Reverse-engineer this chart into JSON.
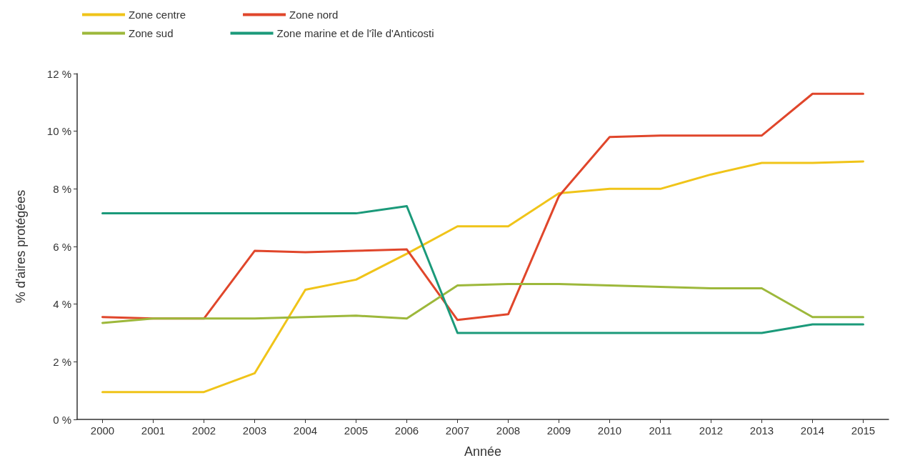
{
  "chart_data": {
    "type": "line",
    "xlabel": "Année",
    "ylabel": "% d'aires protégées",
    "categories": [
      "2000",
      "2001",
      "2002",
      "2003",
      "2004",
      "2005",
      "2006",
      "2007",
      "2008",
      "2009",
      "2010",
      "2011",
      "2012",
      "2013",
      "2014",
      "2015"
    ],
    "series": [
      {
        "name": "Zone centre",
        "color": "#f0c419",
        "values": [
          0.95,
          0.95,
          0.95,
          1.6,
          4.5,
          4.85,
          5.75,
          6.7,
          6.7,
          7.85,
          8.0,
          8.0,
          8.5,
          8.9,
          8.9,
          8.95
        ]
      },
      {
        "name": "Zone nord",
        "color": "#e0462b",
        "values": [
          3.55,
          3.5,
          3.5,
          5.85,
          5.8,
          5.85,
          5.9,
          3.45,
          3.65,
          7.75,
          9.8,
          9.85,
          9.85,
          9.85,
          11.3,
          11.3
        ]
      },
      {
        "name": "Zone sud",
        "color": "#9db83b",
        "values": [
          3.35,
          3.5,
          3.5,
          3.5,
          3.55,
          3.6,
          3.5,
          4.65,
          4.7,
          4.7,
          4.65,
          4.6,
          4.55,
          4.55,
          3.55,
          3.55
        ]
      },
      {
        "name": "Zone marine et de l'île d'Anticosti",
        "color": "#1b9a7a",
        "values": [
          7.15,
          7.15,
          7.15,
          7.15,
          7.15,
          7.15,
          7.4,
          3.0,
          3.0,
          3.0,
          3.0,
          3.0,
          3.0,
          3.0,
          3.3,
          3.3
        ]
      }
    ],
    "ylim": [
      0,
      12
    ],
    "yticks": [
      {
        "value": 0,
        "label": "0 %"
      },
      {
        "value": 2,
        "label": "2 %"
      },
      {
        "value": 4,
        "label": "4 %"
      },
      {
        "value": 6,
        "label": "6 %"
      },
      {
        "value": 8,
        "label": "8 %"
      },
      {
        "value": 10,
        "label": "10 %"
      },
      {
        "value": 12,
        "label": "12 %"
      }
    ],
    "grid": false,
    "legend": "top left",
    "marker": "none",
    "line_style": "solid"
  }
}
